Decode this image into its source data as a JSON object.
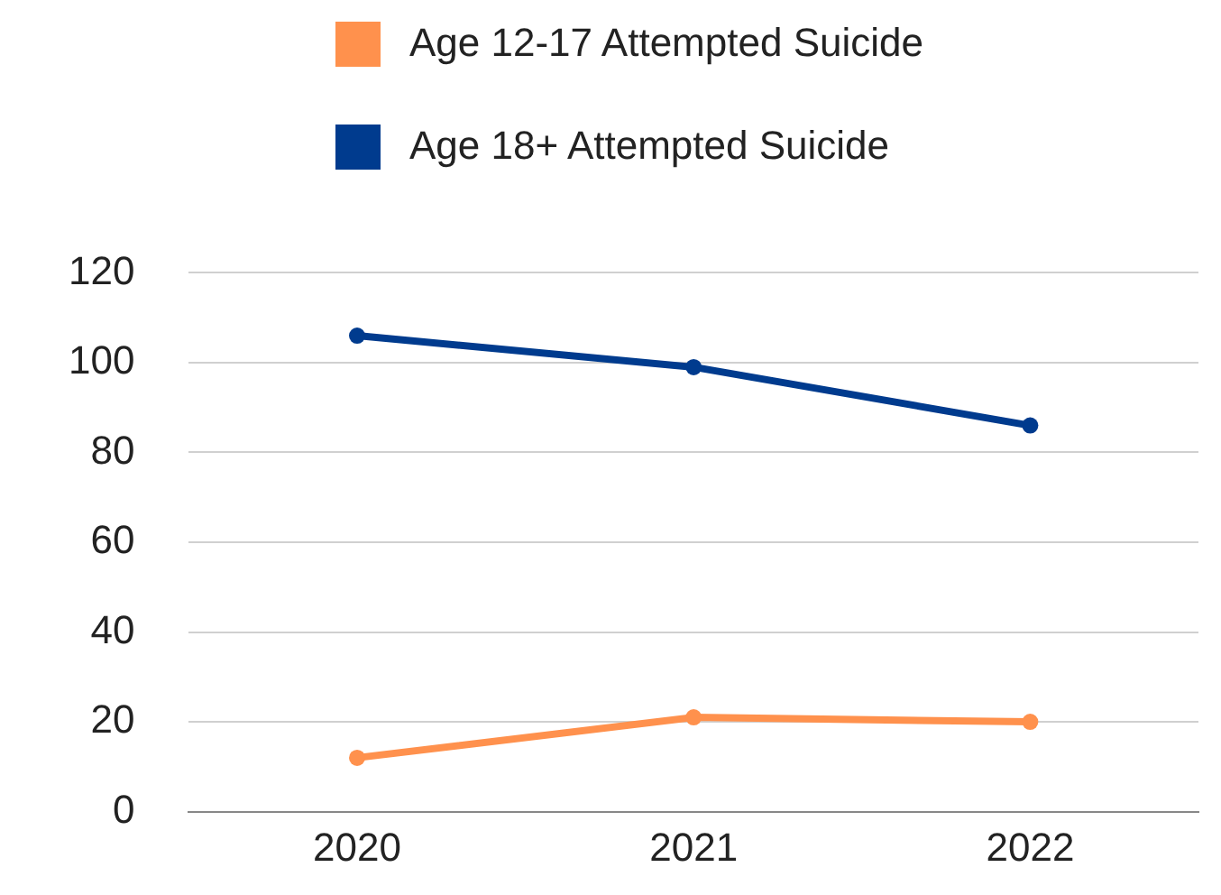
{
  "chart_data": {
    "type": "line",
    "categories": [
      "2020",
      "2021",
      "2022"
    ],
    "series": [
      {
        "name": "Age 12-17 Attempted Suicide",
        "color": "#ff914d",
        "values": [
          12,
          21,
          20
        ]
      },
      {
        "name": "Age 18+ Attempted Suicide",
        "color": "#003b8e",
        "values": [
          106,
          99,
          86
        ]
      }
    ],
    "ylim": [
      0,
      120
    ],
    "yticks": [
      0,
      20,
      40,
      60,
      80,
      100,
      120
    ],
    "grid": "y",
    "legend": "top",
    "marker": "circle",
    "line_style": "solid"
  }
}
